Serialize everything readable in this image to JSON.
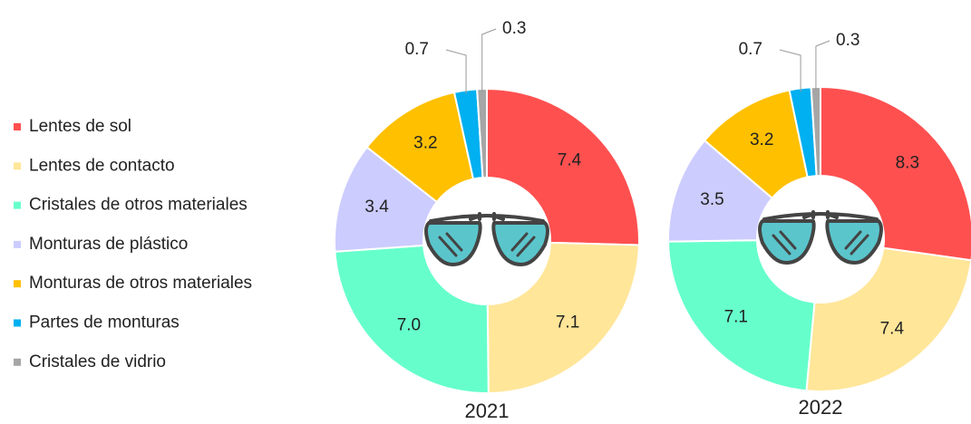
{
  "chart_data": {
    "type": "donut",
    "categories": [
      "Lentes de sol",
      "Lentes de contacto",
      "Cristales de otros materiales",
      "Monturas de plástico",
      "Monturas de otros materiales",
      "Partes de monturas",
      "Cristales de vidrio"
    ],
    "colors": [
      "#ff5050",
      "#ffe699",
      "#66ffcc",
      "#ccccff",
      "#ffc000",
      "#00b0f0",
      "#a6a6a6"
    ],
    "series": [
      {
        "name": "2021",
        "values": [
          7.4,
          7.1,
          7.0,
          3.4,
          3.2,
          0.7,
          0.3
        ],
        "value_labels": [
          "7.4",
          "7.1",
          "7.0",
          "3.4",
          "3.2",
          "0.7",
          "0.3"
        ]
      },
      {
        "name": "2022",
        "values": [
          8.3,
          7.4,
          7.1,
          3.5,
          3.2,
          0.7,
          0.3
        ]
      }
    ]
  }
}
